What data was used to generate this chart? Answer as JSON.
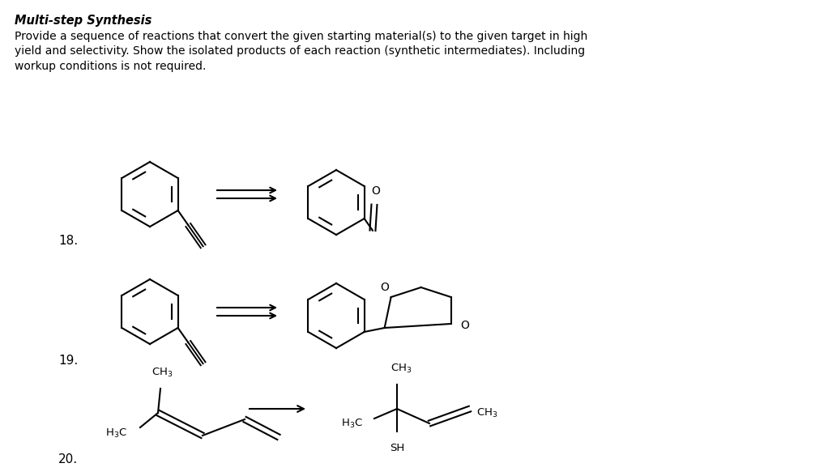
{
  "title_bold": "Multi-step Synthesis",
  "body_text": "Provide a sequence of reactions that convert the given starting material(s) to the given target in high\nyield and selectivity. Show the isolated products of each reaction (synthetic intermediates). Including\nworkup conditions is not required.",
  "bg_color": "#ffffff",
  "text_color": "#000000",
  "label_18": "18.",
  "label_19": "19.",
  "label_20": "20."
}
